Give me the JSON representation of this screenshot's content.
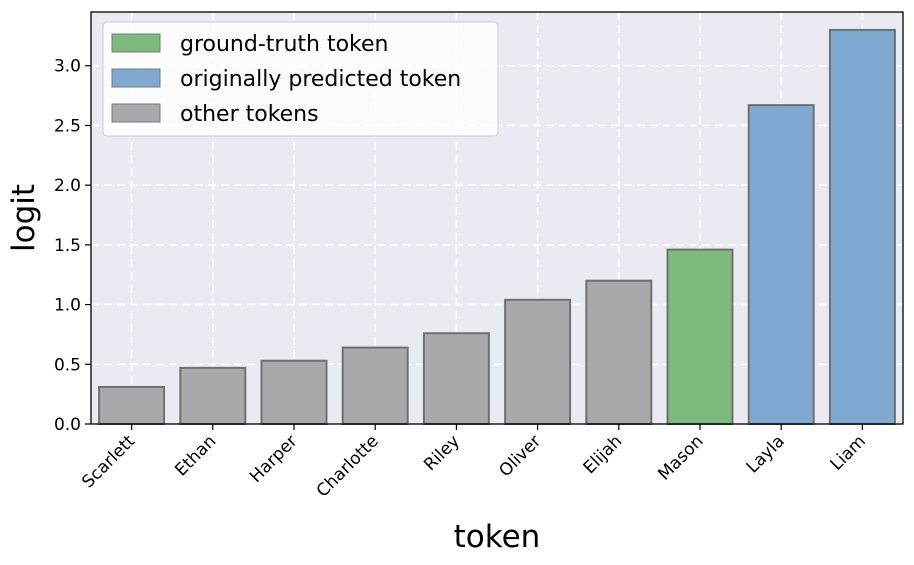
{
  "chart_data": {
    "type": "bar",
    "categories": [
      "Scarlett",
      "Ethan",
      "Harper",
      "Charlotte",
      "Riley",
      "Oliver",
      "Elijah",
      "Mason",
      "Layla",
      "Liam"
    ],
    "values": [
      0.31,
      0.47,
      0.53,
      0.64,
      0.76,
      1.04,
      1.2,
      1.46,
      2.67,
      3.3
    ],
    "bar_kinds": [
      "other",
      "other",
      "other",
      "other",
      "other",
      "other",
      "other",
      "ground_truth",
      "predicted",
      "predicted"
    ],
    "xlabel": "token",
    "ylabel": "logit",
    "ylim": [
      0,
      3.3
    ],
    "yticks": [
      "0.0",
      "0.5",
      "1.0",
      "1.5",
      "2.0",
      "2.5",
      "3.0"
    ],
    "grid": true,
    "legend_position": "top-left",
    "legend": [
      {
        "key": "ground_truth",
        "label": "ground-truth token",
        "color": "#7dba7e"
      },
      {
        "key": "predicted",
        "label": "originally predicted token",
        "color": "#80a9d1"
      },
      {
        "key": "other",
        "label": "other tokens",
        "color": "#a9a9ad"
      }
    ],
    "plot_background": "#eaeaf2"
  }
}
